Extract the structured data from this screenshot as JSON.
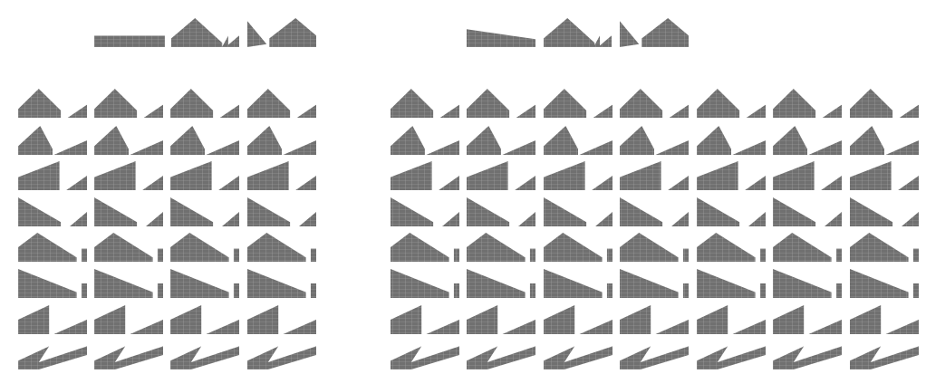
{
  "colors": {
    "fill": "#707070",
    "grid": "#cfcfcf",
    "background": "#ffffff"
  },
  "header_left": [
    {
      "shape": "flat",
      "p": [
        [
          0,
          0.8
        ],
        [
          1,
          0.8
        ]
      ]
    },
    {
      "shape": "peak",
      "p": [
        [
          0,
          0.8
        ],
        [
          0.6,
          0
        ],
        [
          1,
          0.8
        ]
      ]
    },
    {
      "shape": "peak",
      "p": [
        [
          0,
          0.8
        ],
        [
          0.33,
          0.3
        ],
        [
          1,
          0.0
        ]
      ]
    },
    {
      "shape": "notch",
      "p": [
        [
          0,
          0
        ],
        [
          0.35,
          0.9
        ]
      ]
    },
    {
      "shape": "peak",
      "p": [
        [
          0,
          0.6
        ],
        [
          0.6,
          0
        ],
        [
          1,
          0.8
        ]
      ]
    }
  ],
  "header_right": [
    {
      "shape": "slope",
      "p": [
        [
          0,
          0.2
        ],
        [
          1,
          0.8
        ]
      ]
    },
    {
      "shape": "peak",
      "p": [
        [
          0,
          0.8
        ],
        [
          0.6,
          0
        ],
        [
          1,
          0.8
        ]
      ]
    },
    {
      "shape": "peak",
      "p": [
        [
          0,
          0.8
        ],
        [
          0.33,
          0.3
        ],
        [
          1,
          0.0
        ]
      ]
    },
    {
      "shape": "notch",
      "p": [
        [
          0,
          0
        ],
        [
          0.35,
          0.9
        ]
      ]
    },
    {
      "shape": "peak",
      "p": [
        [
          0,
          0.6
        ],
        [
          0.6,
          0
        ],
        [
          1,
          0.8
        ]
      ]
    }
  ],
  "left_block": {
    "rows": 8,
    "columns": 4,
    "row_shapes": [
      "peak-small",
      "peak-steep",
      "rise-cliff",
      "fall-cliff",
      "peak-slope-gap",
      "fall-slope-gap",
      "step-rise",
      "zig"
    ]
  },
  "right_block": {
    "rows": 8,
    "columns": 7,
    "row_shapes": [
      "peak-small",
      "peak-steep",
      "rise-cliff",
      "fall-cliff",
      "peak-slope-gap",
      "fall-slope-gap",
      "step-rise",
      "zig"
    ]
  }
}
